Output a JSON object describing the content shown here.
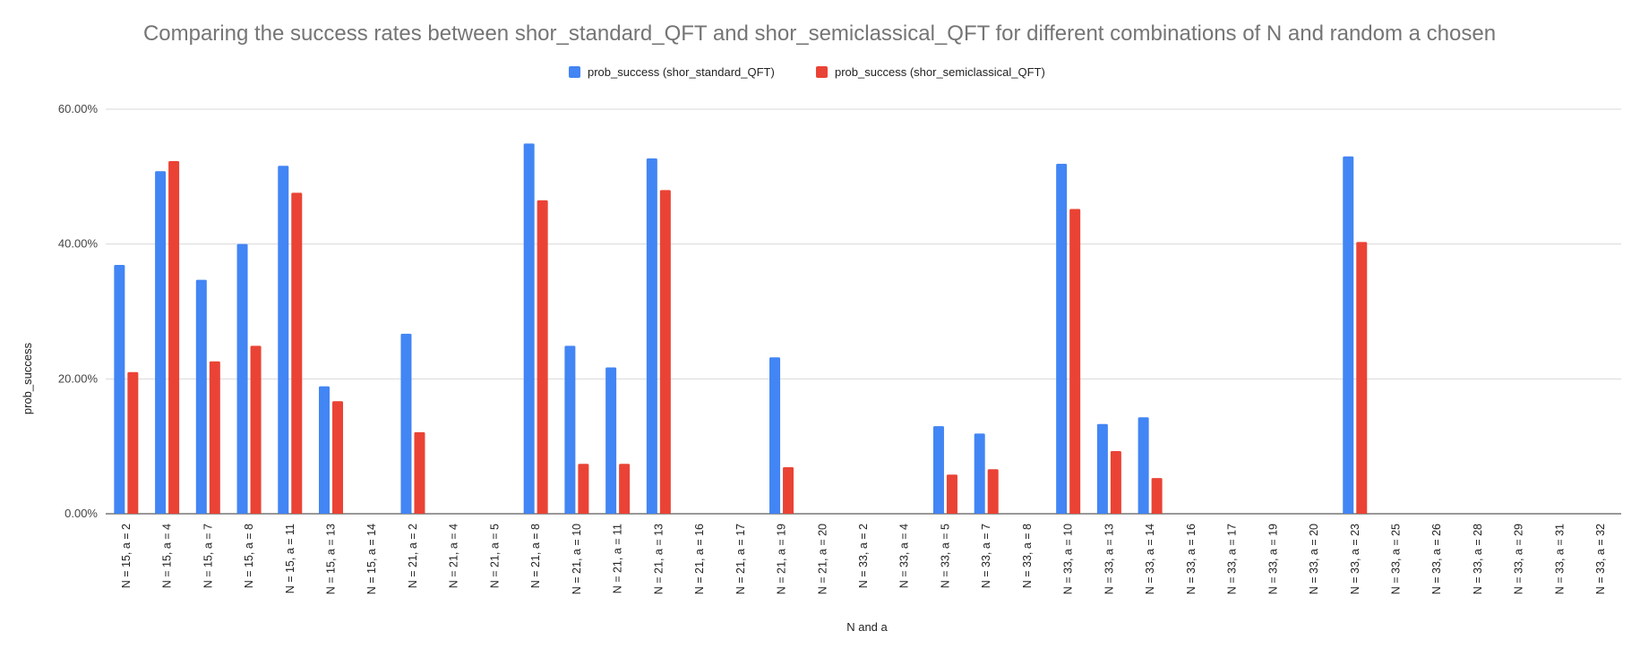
{
  "chart_data": {
    "type": "bar",
    "title": "Comparing the success rates between shor_standard_QFT and shor_semiclassical_QFT for different combinations of N and random a chosen",
    "xlabel": "N and a",
    "ylabel": "prob_success",
    "ylim": [
      0,
      0.6
    ],
    "yticks": [
      0,
      0.2,
      0.4,
      0.6
    ],
    "ytick_labels": [
      "0.00%",
      "20.00%",
      "40.00%",
      "60.00%"
    ],
    "grid": true,
    "legend_position": "top",
    "categories": [
      "N = 15, a = 2",
      "N = 15, a = 4",
      "N = 15, a = 7",
      "N = 15, a = 8",
      "N = 15, a = 11",
      "N = 15, a = 13",
      "N = 15, a = 14",
      "N = 21, a = 2",
      "N = 21, a = 4",
      "N = 21, a = 5",
      "N = 21, a = 8",
      "N = 21, a = 10",
      "N = 21, a = 11",
      "N = 21, a = 13",
      "N = 21, a = 16",
      "N = 21, a = 17",
      "N = 21, a = 19",
      "N = 21, a = 20",
      "N = 33, a = 2",
      "N = 33, a = 4",
      "N = 33, a = 5",
      "N = 33, a = 7",
      "N = 33, a = 8",
      "N = 33, a = 10",
      "N = 33, a = 13",
      "N = 33, a = 14",
      "N = 33, a = 16",
      "N = 33, a = 17",
      "N = 33, a = 19",
      "N = 33, a = 20",
      "N = 33, a = 23",
      "N = 33, a = 25",
      "N = 33, a = 26",
      "N = 33, a = 28",
      "N = 33, a = 29",
      "N = 33, a = 31",
      "N = 33, a = 32"
    ],
    "series": [
      {
        "name": "prob_success (shor_standard_QFT)",
        "color": "#4285f4",
        "values": [
          0.369,
          0.508,
          0.347,
          0.4,
          0.516,
          0.189,
          0,
          0.267,
          0,
          0,
          0.549,
          0.249,
          0.217,
          0.527,
          0,
          0,
          0.232,
          0,
          0,
          0,
          0.13,
          0.119,
          0,
          0.519,
          0.133,
          0.143,
          0,
          0,
          0,
          0,
          0.53,
          0,
          0,
          0,
          0,
          0,
          0
        ]
      },
      {
        "name": "prob_success (shor_semiclassical_QFT)",
        "color": "#ea4335",
        "values": [
          0.21,
          0.523,
          0.226,
          0.249,
          0.476,
          0.167,
          0,
          0.121,
          0,
          0,
          0.465,
          0.074,
          0.074,
          0.48,
          0,
          0,
          0.069,
          0,
          0,
          0,
          0.058,
          0.066,
          0,
          0.452,
          0.093,
          0.053,
          0,
          0,
          0,
          0,
          0.403,
          0,
          0,
          0,
          0,
          0,
          0
        ]
      }
    ]
  }
}
